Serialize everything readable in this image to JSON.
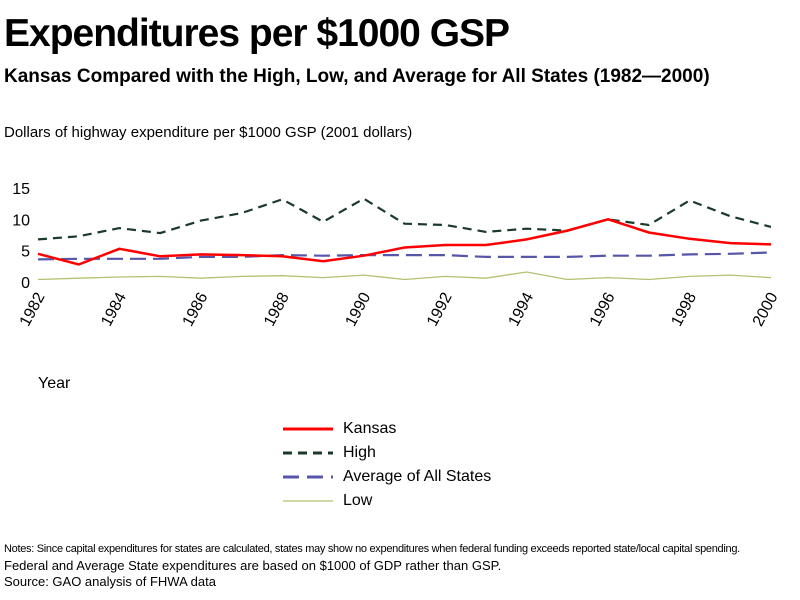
{
  "title": "Expenditures per $1000 GSP",
  "subtitle": "Kansas Compared with the High, Low, and Average for All States (1982—2000)",
  "notes": {
    "line1": "Notes: Since capital expenditures for states are calculated, states may show no expenditures when federal funding exceeds reported state/local capital spending.",
    "line2": "Federal and Average State expenditures are based on $1000 of GDP rather than GSP.",
    "line3": "Source: GAO  analysis of FHWA data"
  },
  "chart_data": {
    "type": "line",
    "title": "Expenditures per $1000 GSP",
    "subtitle": "Kansas Compared with the High, Low, and Average for All States (1982—2000)",
    "ylabel": "Dollars of highway expenditure per $1000 GSP  (2001 dollars)",
    "xlabel": "Year",
    "ylim": [
      0,
      15
    ],
    "yticks": [
      "0",
      "5",
      "10",
      "15"
    ],
    "x": [
      1982,
      1983,
      1984,
      1985,
      1986,
      1987,
      1988,
      1989,
      1990,
      1991,
      1992,
      1993,
      1994,
      1995,
      1996,
      1997,
      1998,
      1999,
      2000
    ],
    "xticks": [
      "1982",
      "1984",
      "1986",
      "1988",
      "1990",
      "1992",
      "1994",
      "1996",
      "1998",
      "2000"
    ],
    "grid": false,
    "legend_position": "bottom",
    "series": [
      {
        "name": "Kansas",
        "color": "#ff0000",
        "style": "solid",
        "values": [
          4.5,
          2.8,
          5.3,
          4.1,
          4.4,
          4.3,
          4.1,
          3.3,
          4.2,
          5.5,
          5.9,
          5.9,
          6.8,
          8.2,
          10.0,
          7.9,
          6.9,
          6.2,
          6.0
        ]
      },
      {
        "name": "High",
        "color": "#1a3a2a",
        "style": "dashed",
        "values": [
          6.8,
          7.3,
          8.6,
          7.8,
          9.8,
          11.0,
          13.2,
          9.6,
          13.3,
          9.3,
          9.1,
          8.0,
          8.5,
          8.2,
          10.0,
          9.1,
          13.0,
          10.5,
          8.8
        ]
      },
      {
        "name": "Average of All States",
        "color": "#5555aa",
        "style": "longdash",
        "values": [
          3.6,
          3.7,
          3.7,
          3.7,
          4.0,
          4.0,
          4.3,
          4.2,
          4.3,
          4.3,
          4.3,
          4.0,
          4.0,
          4.0,
          4.2,
          4.2,
          4.4,
          4.5,
          4.7
        ]
      },
      {
        "name": "Low",
        "color": "#b5c070",
        "style": "solid",
        "values": [
          0.4,
          0.6,
          0.8,
          0.9,
          0.6,
          0.9,
          1.0,
          0.7,
          1.1,
          0.4,
          0.9,
          0.6,
          1.6,
          0.4,
          0.7,
          0.4,
          0.9,
          1.1,
          0.7
        ]
      }
    ]
  }
}
